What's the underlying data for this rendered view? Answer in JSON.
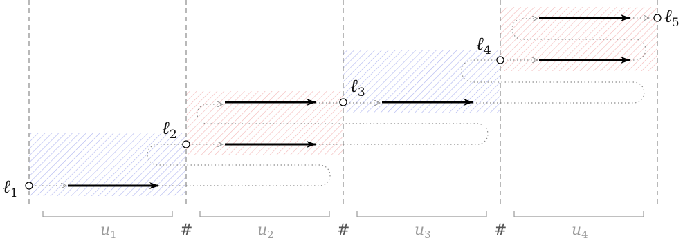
{
  "diagram": {
    "levels": [
      {
        "script": "ℓ",
        "sub": "1"
      },
      {
        "script": "ℓ",
        "sub": "2"
      },
      {
        "script": "ℓ",
        "sub": "3"
      },
      {
        "script": "ℓ",
        "sub": "4"
      },
      {
        "script": "ℓ",
        "sub": "5"
      }
    ],
    "segments": [
      {
        "script": "u",
        "sub": "1"
      },
      {
        "script": "u",
        "sub": "2"
      },
      {
        "script": "u",
        "sub": "3"
      },
      {
        "script": "u",
        "sub": "4"
      }
    ],
    "separator": "#",
    "colors": {
      "blue_hatch": "#aeb4f0",
      "red_hatch": "#f4b6b6",
      "arrow": "#000000",
      "dotted_path": "#8c8c8c",
      "dashed_divider": "#8a8a8a",
      "bracket": "#9a9a9a"
    }
  }
}
